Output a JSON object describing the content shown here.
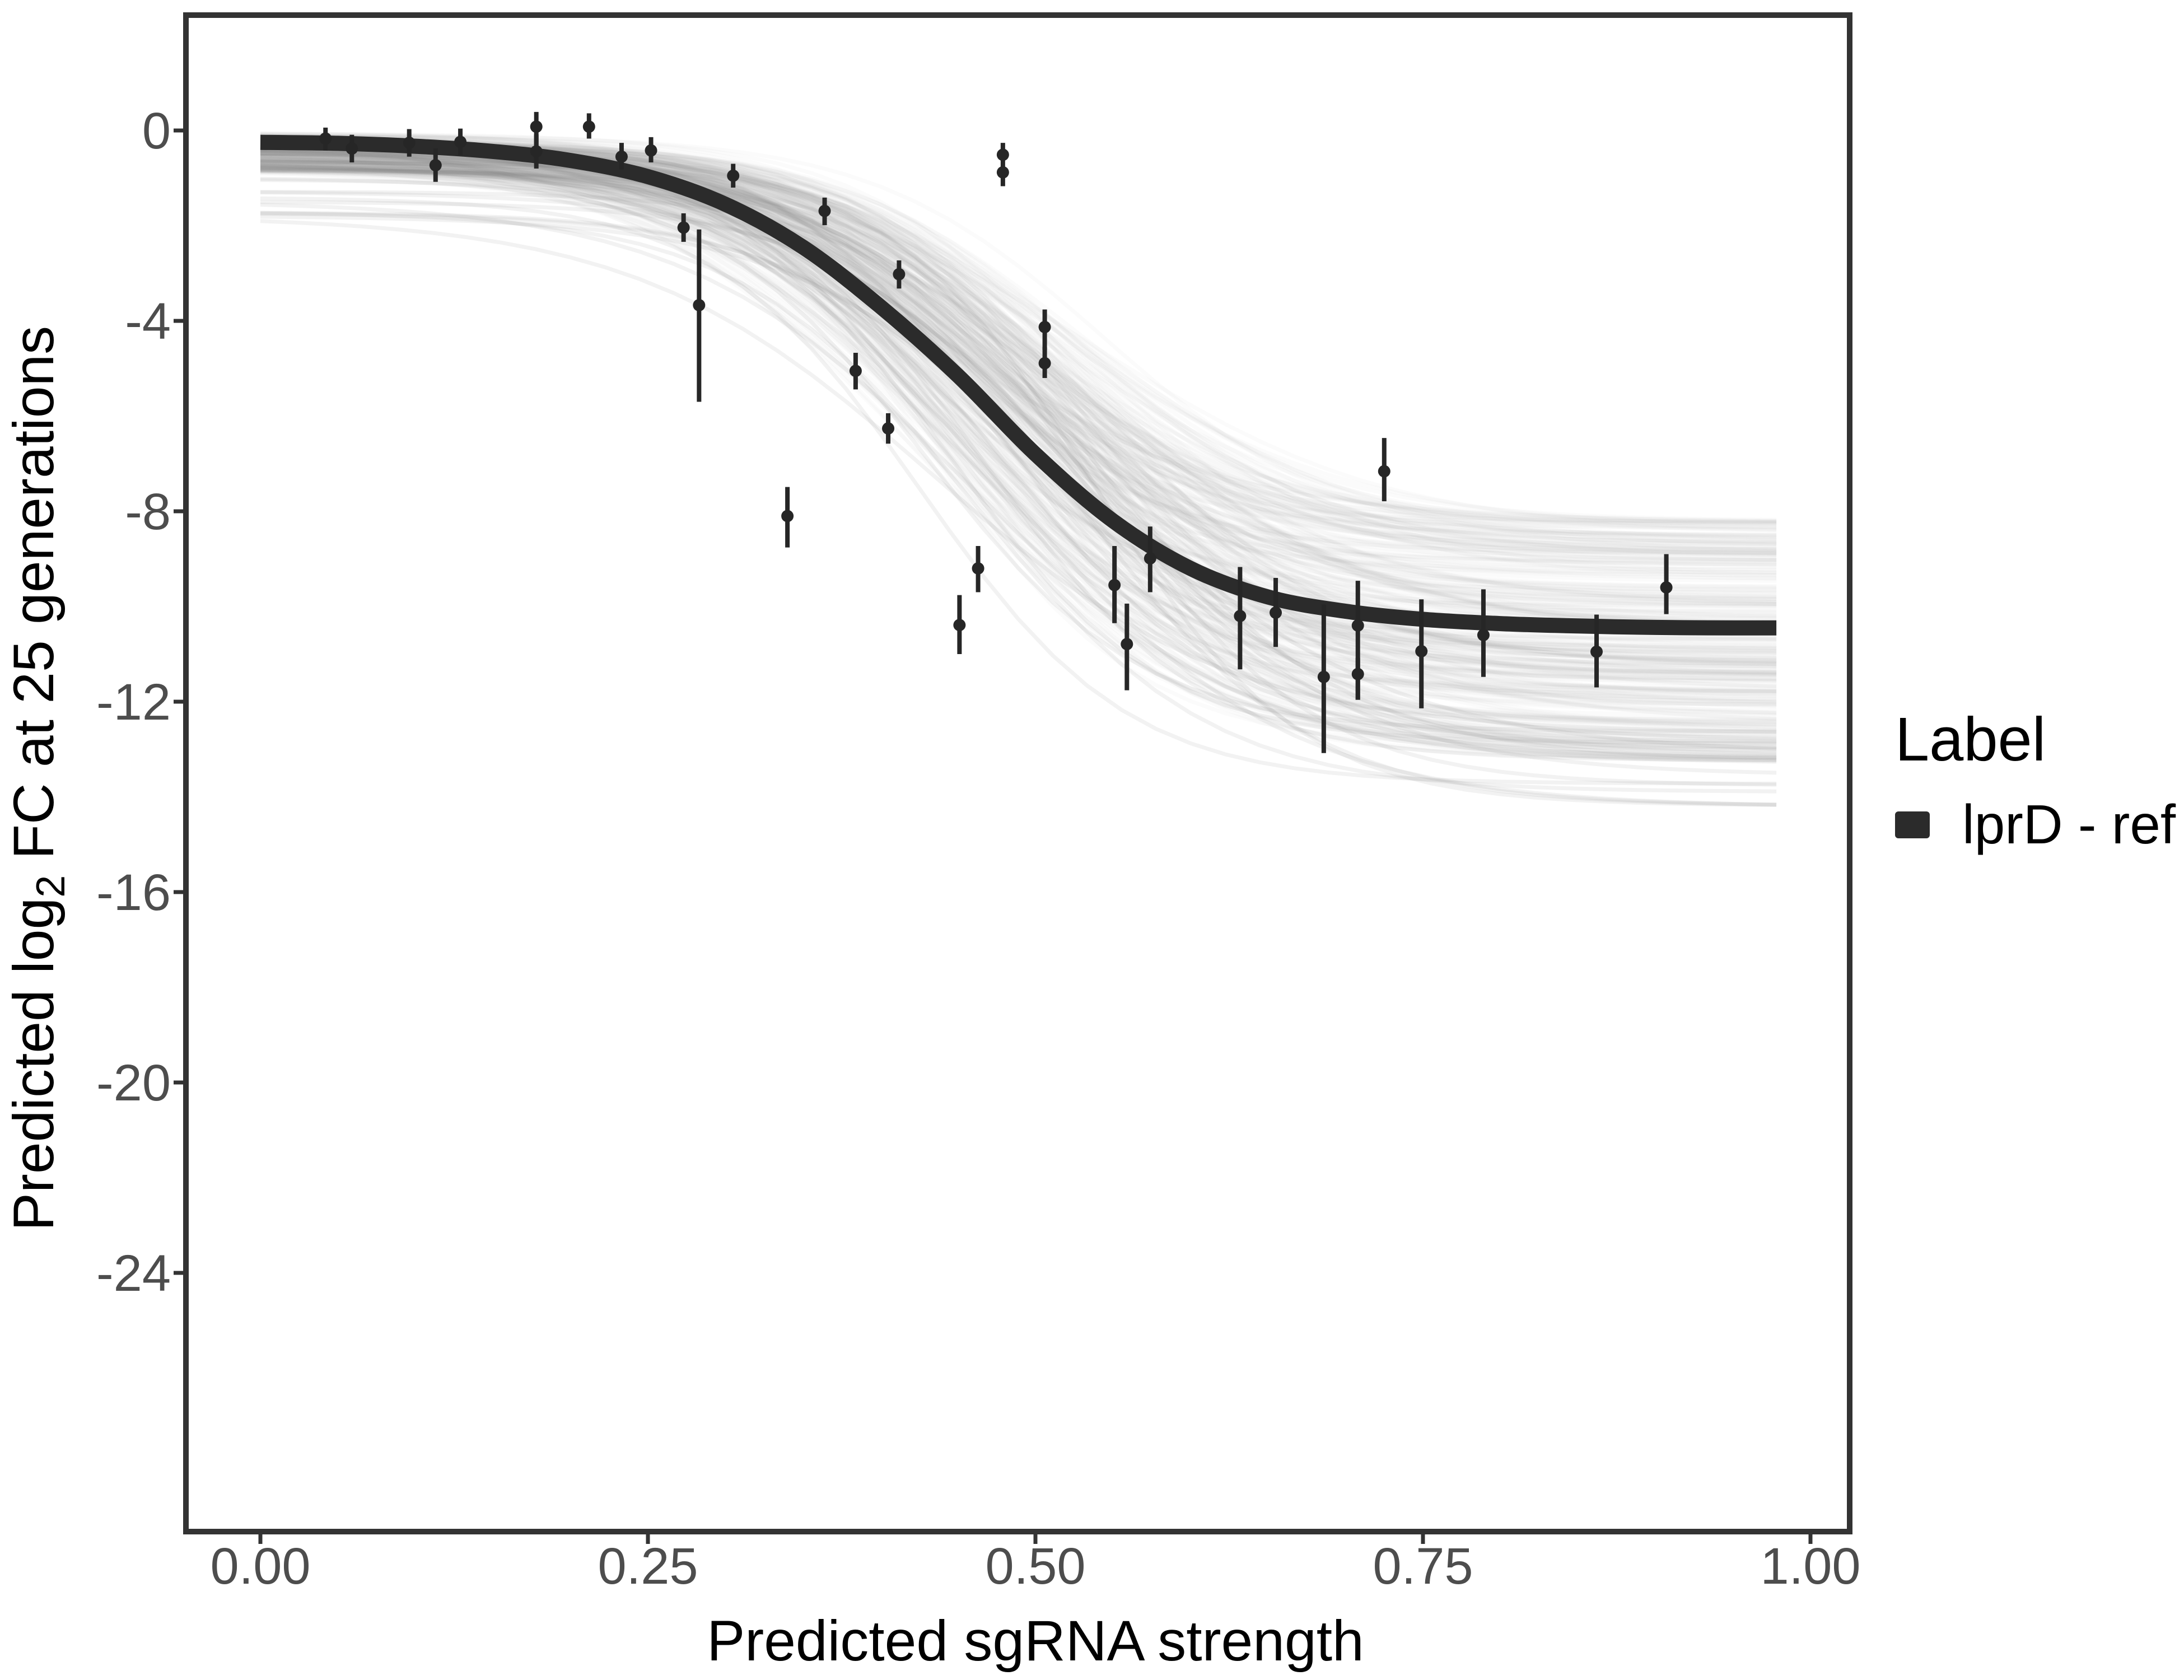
{
  "chart_data": {
    "type": "scatter",
    "title": "",
    "xlabel": "Predicted sgRNA strength",
    "ylabel": "Predicted  log2 FC at 25 generations",
    "ylabel_parts": [
      "Predicted  log",
      "2",
      " FC at 25 generations"
    ],
    "x_axis": {
      "range": [
        -0.049,
        1.027
      ],
      "ticks": [
        {
          "v": 0.0,
          "label": "0.00"
        },
        {
          "v": 0.25,
          "label": "0.25"
        },
        {
          "v": 0.5,
          "label": "0.50"
        },
        {
          "v": 0.75,
          "label": "0.75"
        },
        {
          "v": 1.0,
          "label": "1.00"
        }
      ]
    },
    "y_axis": {
      "range": [
        -29.4,
        2.5
      ],
      "ticks": [
        {
          "v": 0,
          "label": "0"
        },
        {
          "v": -4,
          "label": "-4"
        },
        {
          "v": -8,
          "label": "-8"
        },
        {
          "v": -12,
          "label": "-12"
        },
        {
          "v": -16,
          "label": "-16"
        },
        {
          "v": -20,
          "label": "-20"
        },
        {
          "v": -24,
          "label": "-24"
        }
      ]
    },
    "legend": {
      "title": "Label",
      "entries": [
        {
          "label": "lprD - ref",
          "color": "#2b2b2b"
        }
      ]
    },
    "points": [
      {
        "x": 0.042,
        "y": -0.17,
        "lo": -0.42,
        "hi": 0.06
      },
      {
        "x": 0.059,
        "y": -0.38,
        "lo": -0.67,
        "hi": -0.09
      },
      {
        "x": 0.096,
        "y": -0.26,
        "lo": -0.55,
        "hi": 0.03
      },
      {
        "x": 0.113,
        "y": -0.73,
        "lo": -1.08,
        "hi": -0.38
      },
      {
        "x": 0.129,
        "y": -0.24,
        "lo": -0.52,
        "hi": 0.04
      },
      {
        "x": 0.178,
        "y": 0.08,
        "lo": -0.32,
        "hi": 0.39
      },
      {
        "x": 0.178,
        "y": -0.44,
        "lo": -0.8,
        "hi": -0.08
      },
      {
        "x": 0.212,
        "y": 0.08,
        "lo": -0.17,
        "hi": 0.36
      },
      {
        "x": 0.233,
        "y": -0.55,
        "lo": -0.82,
        "hi": -0.26
      },
      {
        "x": 0.252,
        "y": -0.42,
        "lo": -0.67,
        "hi": -0.14
      },
      {
        "x": 0.273,
        "y": -2.04,
        "lo": -2.34,
        "hi": -1.74
      },
      {
        "x": 0.283,
        "y": -3.67,
        "lo": -5.7,
        "hi": -2.08
      },
      {
        "x": 0.305,
        "y": -0.95,
        "lo": -1.2,
        "hi": -0.7
      },
      {
        "x": 0.34,
        "y": -8.1,
        "lo": -8.76,
        "hi": -7.49
      },
      {
        "x": 0.364,
        "y": -1.69,
        "lo": -1.99,
        "hi": -1.41
      },
      {
        "x": 0.384,
        "y": -5.05,
        "lo": -5.44,
        "hi": -4.67
      },
      {
        "x": 0.405,
        "y": -6.26,
        "lo": -6.58,
        "hi": -5.94
      },
      {
        "x": 0.412,
        "y": -3.02,
        "lo": -3.32,
        "hi": -2.73
      },
      {
        "x": 0.451,
        "y": -10.39,
        "lo": -11.0,
        "hi": -9.76
      },
      {
        "x": 0.463,
        "y": -9.2,
        "lo": -9.7,
        "hi": -8.73
      },
      {
        "x": 0.479,
        "y": -0.51,
        "lo": -0.73,
        "hi": -0.26
      },
      {
        "x": 0.479,
        "y": -0.88,
        "lo": -1.17,
        "hi": -0.73
      },
      {
        "x": 0.506,
        "y": -4.13,
        "lo": -4.61,
        "hi": -3.76
      },
      {
        "x": 0.506,
        "y": -4.89,
        "lo": -5.2,
        "hi": -4.55
      },
      {
        "x": 0.551,
        "y": -9.55,
        "lo": -10.35,
        "hi": -8.73
      },
      {
        "x": 0.559,
        "y": -10.79,
        "lo": -11.76,
        "hi": -9.94
      },
      {
        "x": 0.574,
        "y": -8.99,
        "lo": -9.7,
        "hi": -8.32
      },
      {
        "x": 0.632,
        "y": -10.2,
        "lo": -11.32,
        "hi": -9.17
      },
      {
        "x": 0.655,
        "y": -10.13,
        "lo": -10.85,
        "hi": -9.4
      },
      {
        "x": 0.686,
        "y": -11.48,
        "lo": -13.08,
        "hi": -9.96
      },
      {
        "x": 0.708,
        "y": -10.4,
        "lo": -11.96,
        "hi": -9.46
      },
      {
        "x": 0.708,
        "y": -11.42,
        "lo": -11.96,
        "hi": -11.08
      },
      {
        "x": 0.725,
        "y": -7.16,
        "lo": -7.79,
        "hi": -6.46
      },
      {
        "x": 0.749,
        "y": -10.94,
        "lo": -12.14,
        "hi": -9.85
      },
      {
        "x": 0.789,
        "y": -10.6,
        "lo": -11.48,
        "hi": -9.64
      },
      {
        "x": 0.862,
        "y": -10.95,
        "lo": -11.7,
        "hi": -10.17
      },
      {
        "x": 0.907,
        "y": -9.6,
        "lo": -10.16,
        "hi": -8.9
      }
    ],
    "fit_curve": [
      [
        0.0,
        -0.25
      ],
      [
        0.05,
        -0.27
      ],
      [
        0.1,
        -0.33
      ],
      [
        0.15,
        -0.44
      ],
      [
        0.2,
        -0.63
      ],
      [
        0.25,
        -0.97
      ],
      [
        0.3,
        -1.55
      ],
      [
        0.35,
        -2.45
      ],
      [
        0.4,
        -3.7
      ],
      [
        0.45,
        -5.15
      ],
      [
        0.5,
        -6.8
      ],
      [
        0.55,
        -8.2
      ],
      [
        0.6,
        -9.2
      ],
      [
        0.65,
        -9.8
      ],
      [
        0.7,
        -10.1
      ],
      [
        0.75,
        -10.27
      ],
      [
        0.8,
        -10.36
      ],
      [
        0.85,
        -10.41
      ],
      [
        0.9,
        -10.44
      ],
      [
        0.95,
        -10.45
      ],
      [
        0.978,
        -10.45
      ]
    ],
    "posterior_draws": {
      "seed": 11,
      "count": 300,
      "alpha": 0.03,
      "outlier_count": 18,
      "outlier_alpha": 0.1,
      "color": "#808080",
      "x_start": 0.0,
      "x_end": 0.978,
      "upper_start_range": [
        -0.05,
        -0.85
      ],
      "outlier_upper_start_range": [
        -0.6,
        -1.9
      ],
      "asymptote_range": [
        -8.2,
        -13.3
      ],
      "outlier_asymptote_range": [
        -12.6,
        -14.4
      ],
      "midpoint_range": [
        0.42,
        0.545
      ],
      "steepness_range": [
        10.0,
        15.5
      ]
    },
    "grid": "off",
    "legend_position": "right"
  },
  "colors": {
    "background": "#ffffff",
    "panel_border": "#333333",
    "tick_text": "#4d4d4d",
    "axis_title_text": "#000000",
    "fit_curve": "#2b2b2b",
    "point": "#262626",
    "spaghetti": "#808080"
  }
}
